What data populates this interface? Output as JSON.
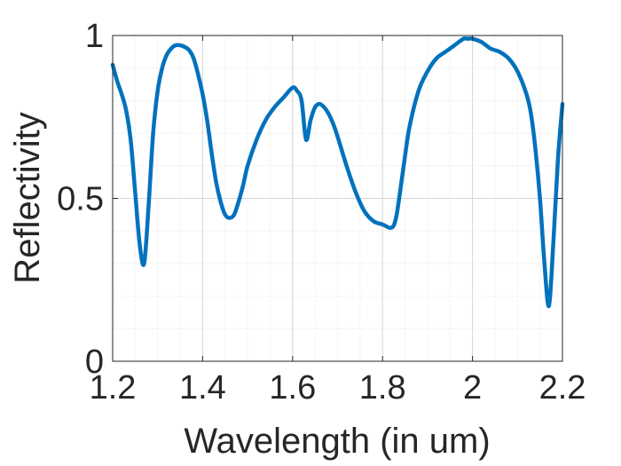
{
  "chart_data": {
    "type": "line",
    "title": "",
    "xlabel": "Wavelength (in um)",
    "ylabel": "Reflectivity",
    "xlim": [
      1.2,
      2.2
    ],
    "ylim": [
      0,
      1
    ],
    "xticks": [
      1.2,
      1.4,
      1.6,
      1.8,
      2.0,
      2.2
    ],
    "xtick_labels": [
      "1.2",
      "1.4",
      "1.6",
      "1.8",
      "2",
      "2.2"
    ],
    "yticks": [
      0,
      0.5,
      1
    ],
    "ytick_labels": [
      "0",
      "0.5",
      "1"
    ],
    "grid": true,
    "minor_grid": true,
    "legend": "none",
    "line_color": "#0072BD",
    "series": [
      {
        "x": [
          1.2,
          1.21,
          1.22,
          1.23,
          1.24,
          1.25,
          1.26,
          1.27,
          1.28,
          1.29,
          1.3,
          1.31,
          1.32,
          1.33,
          1.34,
          1.35,
          1.36,
          1.37,
          1.38,
          1.39,
          1.4,
          1.41,
          1.42,
          1.43,
          1.44,
          1.45,
          1.46,
          1.47,
          1.48,
          1.49,
          1.5,
          1.52,
          1.54,
          1.56,
          1.58,
          1.6,
          1.61,
          1.62,
          1.63,
          1.64,
          1.65,
          1.66,
          1.67,
          1.68,
          1.69,
          1.7,
          1.72,
          1.74,
          1.76,
          1.78,
          1.8,
          1.82,
          1.83,
          1.84,
          1.85,
          1.86,
          1.88,
          1.9,
          1.92,
          1.94,
          1.96,
          1.98,
          1.99,
          2.0,
          2.02,
          2.04,
          2.06,
          2.08,
          2.1,
          2.12,
          2.13,
          2.14,
          2.15,
          2.16,
          2.17,
          2.18,
          2.19,
          2.2
        ],
        "y": [
          0.91,
          0.86,
          0.82,
          0.77,
          0.68,
          0.52,
          0.36,
          0.3,
          0.48,
          0.7,
          0.83,
          0.9,
          0.94,
          0.96,
          0.97,
          0.97,
          0.965,
          0.955,
          0.93,
          0.88,
          0.82,
          0.74,
          0.64,
          0.55,
          0.49,
          0.45,
          0.44,
          0.45,
          0.49,
          0.54,
          0.6,
          0.68,
          0.74,
          0.78,
          0.81,
          0.84,
          0.83,
          0.8,
          0.68,
          0.74,
          0.78,
          0.79,
          0.78,
          0.76,
          0.73,
          0.69,
          0.6,
          0.52,
          0.46,
          0.43,
          0.42,
          0.41,
          0.44,
          0.53,
          0.63,
          0.72,
          0.83,
          0.89,
          0.93,
          0.95,
          0.97,
          0.99,
          0.99,
          0.99,
          0.98,
          0.96,
          0.95,
          0.93,
          0.89,
          0.82,
          0.76,
          0.65,
          0.5,
          0.3,
          0.17,
          0.37,
          0.62,
          0.79
        ]
      }
    ]
  }
}
